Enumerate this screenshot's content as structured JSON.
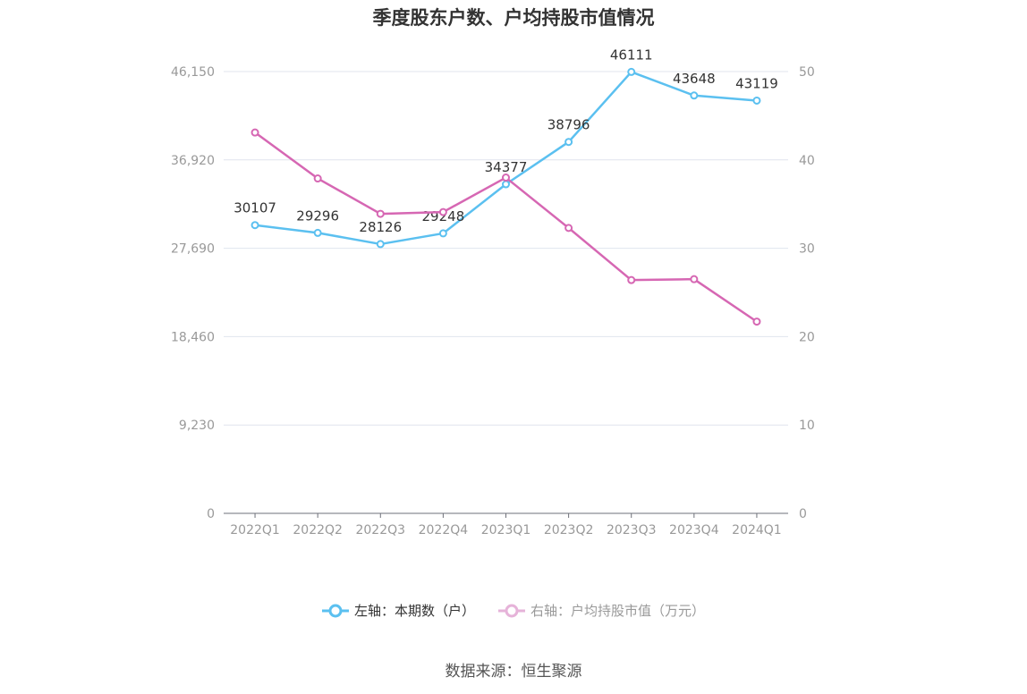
{
  "title": "季度股东户数、户均持股市值情况",
  "source": "数据来源：恒生聚源",
  "legend": {
    "left_label": "左轴：本期数（户）",
    "right_label": "右轴：户均持股市值（万元）"
  },
  "colors": {
    "left_series": "#5bc0f0",
    "right_series": "#d667b3",
    "right_legend": "#e6b3d9",
    "axis_text": "#999999",
    "grid": "#e0e4ee"
  },
  "chart_data": {
    "type": "line",
    "categories": [
      "2022Q1",
      "2022Q2",
      "2022Q3",
      "2022Q4",
      "2023Q1",
      "2023Q2",
      "2023Q3",
      "2023Q4",
      "2024Q1"
    ],
    "series": [
      {
        "name": "左轴：本期数（户）",
        "axis": "left",
        "values": [
          30107,
          29296,
          28126,
          29248,
          34377,
          38796,
          46111,
          43648,
          43119
        ],
        "labels": [
          "30107",
          "29296",
          "28126",
          "29248",
          "34377",
          "38796",
          "46111",
          "43648",
          "43119"
        ]
      },
      {
        "name": "右轴：户均持股市值（万元）",
        "axis": "right",
        "values": [
          43.1,
          37.9,
          33.9,
          34.1,
          38.0,
          32.3,
          26.4,
          26.5,
          21.7
        ]
      }
    ],
    "y_left": {
      "ylim": [
        0,
        46150
      ],
      "ticks": [
        0,
        9230,
        18460,
        27690,
        36920,
        46150
      ],
      "tick_labels": [
        "0",
        "9,230",
        "18,460",
        "27,690",
        "36,920",
        "46,150"
      ]
    },
    "y_right": {
      "ylim": [
        0,
        50
      ],
      "ticks": [
        0,
        10,
        20,
        30,
        40,
        50
      ],
      "tick_labels": [
        "0",
        "10",
        "20",
        "30",
        "40",
        "50"
      ]
    },
    "grid": true,
    "legend_position": "bottom"
  }
}
